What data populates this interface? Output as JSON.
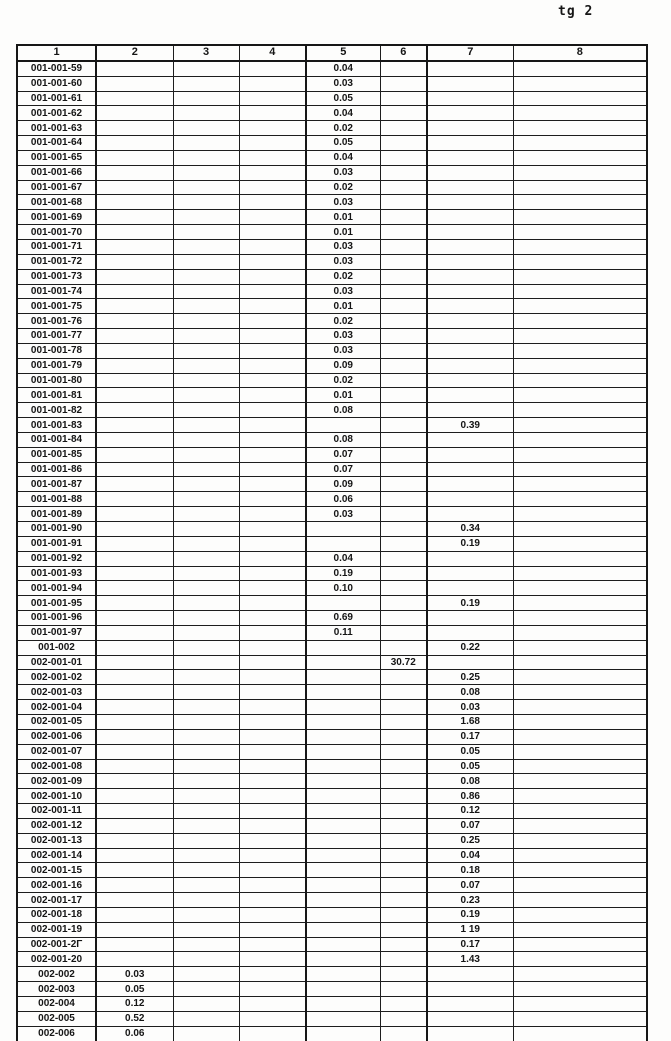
{
  "page_label": "tg 2",
  "table": {
    "headers": [
      "1",
      "2",
      "3",
      "4",
      "5",
      "6",
      "7",
      "8"
    ],
    "rows": [
      [
        "001-001-59",
        "",
        "",
        "",
        "0.04",
        "",
        "",
        ""
      ],
      [
        "001-001-60",
        "",
        "",
        "",
        "0.03",
        "",
        "",
        ""
      ],
      [
        "001-001-61",
        "",
        "",
        "",
        "0.05",
        "",
        "",
        ""
      ],
      [
        "001-001-62",
        "",
        "",
        "",
        "0.04",
        "",
        "",
        ""
      ],
      [
        "001-001-63",
        "",
        "",
        "",
        "0.02",
        "",
        "",
        ""
      ],
      [
        "001-001-64",
        "",
        "",
        "",
        "0.05",
        "",
        "",
        ""
      ],
      [
        "001-001-65",
        "",
        "",
        "",
        "0.04",
        "",
        "",
        ""
      ],
      [
        "001-001-66",
        "",
        "",
        "",
        "0.03",
        "",
        "",
        ""
      ],
      [
        "001-001-67",
        "",
        "",
        "",
        "0.02",
        "",
        "",
        ""
      ],
      [
        "001-001-68",
        "",
        "",
        "",
        "0.03",
        "",
        "",
        ""
      ],
      [
        "001-001-69",
        "",
        "",
        "",
        "0.01",
        "",
        "",
        ""
      ],
      [
        "001-001-70",
        "",
        "",
        "",
        "0.01",
        "",
        "",
        ""
      ],
      [
        "001-001-71",
        "",
        "",
        "",
        "0.03",
        "",
        "",
        ""
      ],
      [
        "001-001-72",
        "",
        "",
        "",
        "0.03",
        "",
        "",
        ""
      ],
      [
        "001-001-73",
        "",
        "",
        "",
        "0.02",
        "",
        "",
        ""
      ],
      [
        "001-001-74",
        "",
        "",
        "",
        "0.03",
        "",
        "",
        ""
      ],
      [
        "001-001-75",
        "",
        "",
        "",
        "0.01",
        "",
        "",
        ""
      ],
      [
        "001-001-76",
        "",
        "",
        "",
        "0.02",
        "",
        "",
        ""
      ],
      [
        "001-001-77",
        "",
        "",
        "",
        "0.03",
        "",
        "",
        ""
      ],
      [
        "001-001-78",
        "",
        "",
        "",
        "0.03",
        "",
        "",
        ""
      ],
      [
        "001-001-79",
        "",
        "",
        "",
        "0.09",
        "",
        "",
        ""
      ],
      [
        "001-001-80",
        "",
        "",
        "",
        "0.02",
        "",
        "",
        ""
      ],
      [
        "001-001-81",
        "",
        "",
        "",
        "0.01",
        "",
        "",
        ""
      ],
      [
        "001-001-82",
        "",
        "",
        "",
        "0.08",
        "",
        "",
        ""
      ],
      [
        "001-001-83",
        "",
        "",
        "",
        "",
        "",
        "0.39",
        ""
      ],
      [
        "001-001-84",
        "",
        "",
        "",
        "0.08",
        "",
        "",
        ""
      ],
      [
        "001-001-85",
        "",
        "",
        "",
        "0.07",
        "",
        "",
        ""
      ],
      [
        "001-001-86",
        "",
        "",
        "",
        "0.07",
        "",
        "",
        ""
      ],
      [
        "001-001-87",
        "",
        "",
        "",
        "0.09",
        "",
        "",
        ""
      ],
      [
        "001-001-88",
        "",
        "",
        "",
        "0.06",
        "",
        "",
        ""
      ],
      [
        "001-001-89",
        "",
        "",
        "",
        "0.03",
        "",
        "",
        ""
      ],
      [
        "001-001-90",
        "",
        "",
        "",
        "",
        "",
        "0.34",
        ""
      ],
      [
        "001-001-91",
        "",
        "",
        "",
        "",
        "",
        "0.19",
        ""
      ],
      [
        "001-001-92",
        "",
        "",
        "",
        "0.04",
        "",
        "",
        ""
      ],
      [
        "001-001-93",
        "",
        "",
        "",
        "0.19",
        "",
        "",
        ""
      ],
      [
        "001-001-94",
        "",
        "",
        "",
        "0.10",
        "",
        "",
        ""
      ],
      [
        "001-001-95",
        "",
        "",
        "",
        "",
        "",
        "0.19",
        ""
      ],
      [
        "001-001-96",
        "",
        "",
        "",
        "0.69",
        "",
        "",
        ""
      ],
      [
        "001-001-97",
        "",
        "",
        "",
        "0.11",
        "",
        "",
        ""
      ],
      [
        "001-002",
        "",
        "",
        "",
        "",
        "",
        "0.22",
        ""
      ],
      [
        "002-001-01",
        "",
        "",
        "",
        "",
        "30.72",
        "",
        ""
      ],
      [
        "002-001-02",
        "",
        "",
        "",
        "",
        "",
        "0.25",
        ""
      ],
      [
        "002-001-03",
        "",
        "",
        "",
        "",
        "",
        "0.08",
        ""
      ],
      [
        "002-001-04",
        "",
        "",
        "",
        "",
        "",
        "0.03",
        ""
      ],
      [
        "002-001-05",
        "",
        "",
        "",
        "",
        "",
        "1.68",
        ""
      ],
      [
        "002-001-06",
        "",
        "",
        "",
        "",
        "",
        "0.17",
        ""
      ],
      [
        "002-001-07",
        "",
        "",
        "",
        "",
        "",
        "0.05",
        ""
      ],
      [
        "002-001-08",
        "",
        "",
        "",
        "",
        "",
        "0.05",
        ""
      ],
      [
        "002-001-09",
        "",
        "",
        "",
        "",
        "",
        "0.08",
        ""
      ],
      [
        "002-001-10",
        "",
        "",
        "",
        "",
        "",
        "0.86",
        ""
      ],
      [
        "002-001-11",
        "",
        "",
        "",
        "",
        "",
        "0.12",
        ""
      ],
      [
        "002-001-12",
        "",
        "",
        "",
        "",
        "",
        "0.07",
        ""
      ],
      [
        "002-001-13",
        "",
        "",
        "",
        "",
        "",
        "0.25",
        ""
      ],
      [
        "002-001-14",
        "",
        "",
        "",
        "",
        "",
        "0.04",
        ""
      ],
      [
        "002-001-15",
        "",
        "",
        "",
        "",
        "",
        "0.18",
        ""
      ],
      [
        "002-001-16",
        "",
        "",
        "",
        "",
        "",
        "0.07",
        ""
      ],
      [
        "002-001-17",
        "",
        "",
        "",
        "",
        "",
        "0.23",
        ""
      ],
      [
        "002-001-18",
        "",
        "",
        "",
        "",
        "",
        "0.19",
        ""
      ],
      [
        "002-001-19",
        "",
        "",
        "",
        "",
        "",
        "1 19",
        ""
      ],
      [
        "002-001-2Γ",
        "",
        "",
        "",
        "",
        "",
        "0.17",
        ""
      ],
      [
        "002-001-20",
        "",
        "",
        "",
        "",
        "",
        "1.43",
        ""
      ],
      [
        "002-002",
        "0.03",
        "",
        "",
        "",
        "",
        "",
        ""
      ],
      [
        "002-003",
        "0.05",
        "",
        "",
        "",
        "",
        "",
        ""
      ],
      [
        "002-004",
        "0.12",
        "",
        "",
        "",
        "",
        "",
        ""
      ],
      [
        "002-005",
        "0.52",
        "",
        "",
        "",
        "",
        "",
        ""
      ],
      [
        "002-006",
        "0.06",
        "",
        "",
        "",
        "",
        "",
        ""
      ]
    ]
  }
}
